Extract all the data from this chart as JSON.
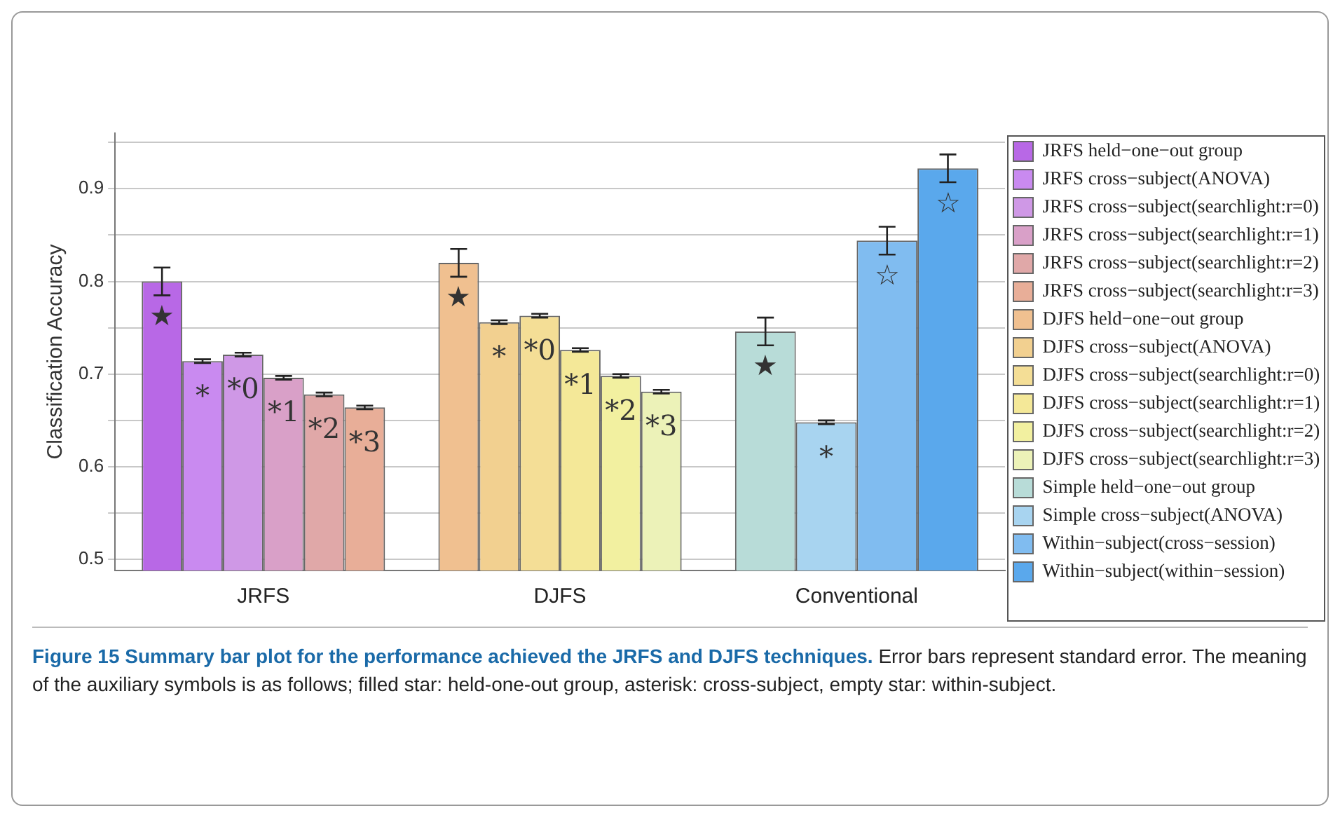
{
  "chart_data": {
    "type": "bar",
    "title": "Figure 15 Summary bar plot for the performance achieved the JRFS and DJFS techniques.",
    "ylabel": "Classification Accuracy",
    "categories": [
      "JRFS",
      "DJFS",
      "Conventional"
    ],
    "ylim": [
      0.488,
      0.96
    ],
    "yticks": [
      0.5,
      {
        "value": 0.55,
        "label": null
      },
      0.6,
      {
        "value": 0.65,
        "label": null
      },
      0.7,
      {
        "value": 0.75,
        "label": null
      },
      0.8,
      {
        "value": 0.85,
        "label": null
      },
      0.9,
      {
        "value": 0.95,
        "label": null
      }
    ],
    "grid": "y",
    "legend": "right",
    "annotations": [
      "★",
      "*",
      "*0",
      "*1",
      "*2",
      "*3",
      "★",
      "*",
      "*0",
      "*1",
      "*2",
      "*3",
      "★",
      "*",
      "☆",
      "☆",
      "Error bars represent standard error. The meaning of the auxiliary symbols is as follows; filled star: held-one-out group, asterisk: cross-subject, empty star: within-subject."
    ],
    "series": [
      {
        "name": "JRFS held−one−out group",
        "color": "#b868e6",
        "values": [
          0.8,
          null,
          null
        ],
        "errors": [
          0.015,
          null,
          null
        ]
      },
      {
        "name": "JRFS cross−subject(ANOVA)",
        "color": "#c98af0",
        "values": [
          0.714,
          null,
          null
        ],
        "errors": [
          0.002,
          null,
          null
        ]
      },
      {
        "name": "JRFS cross−subject(searchlight:r=0)",
        "color": "#cf98e6",
        "values": [
          0.721,
          null,
          null
        ],
        "errors": [
          0.002,
          null,
          null
        ]
      },
      {
        "name": "JRFS cross−subject(searchlight:r=1)",
        "color": "#d9a0c8",
        "values": [
          0.696,
          null,
          null
        ],
        "errors": [
          0.002,
          null,
          null
        ]
      },
      {
        "name": "JRFS cross−subject(searchlight:r=2)",
        "color": "#e0a8a8",
        "values": [
          0.678,
          null,
          null
        ],
        "errors": [
          0.002,
          null,
          null
        ]
      },
      {
        "name": "JRFS cross−subject(searchlight:r=3)",
        "color": "#e8ae98",
        "values": [
          0.664,
          null,
          null
        ],
        "errors": [
          0.002,
          null,
          null
        ]
      },
      {
        "name": "DJFS held−one−out group",
        "color": "#f0c090",
        "values": [
          null,
          0.82,
          null
        ],
        "errors": [
          null,
          0.015,
          null
        ]
      },
      {
        "name": "DJFS cross−subject(ANOVA)",
        "color": "#f2d090",
        "values": [
          null,
          0.756,
          null
        ],
        "errors": [
          null,
          0.002,
          null
        ]
      },
      {
        "name": "DJFS cross−subject(searchlight:r=0)",
        "color": "#f4de96",
        "values": [
          null,
          0.763,
          null
        ],
        "errors": [
          null,
          0.002,
          null
        ]
      },
      {
        "name": "DJFS cross−subject(searchlight:r=1)",
        "color": "#f4e898",
        "values": [
          null,
          0.726,
          null
        ],
        "errors": [
          null,
          0.002,
          null
        ]
      },
      {
        "name": "DJFS cross−subject(searchlight:r=2)",
        "color": "#f2f0a0",
        "values": [
          null,
          0.698,
          null
        ],
        "errors": [
          null,
          0.002,
          null
        ]
      },
      {
        "name": "DJFS cross−subject(searchlight:r=3)",
        "color": "#ecf2b8",
        "values": [
          null,
          0.681,
          null
        ],
        "errors": [
          null,
          0.002,
          null
        ]
      },
      {
        "name": "Simple held−one−out group",
        "color": "#b8dcd8",
        "values": [
          null,
          null,
          0.746
        ],
        "errors": [
          null,
          null,
          0.015
        ]
      },
      {
        "name": "Simple cross−subject(ANOVA)",
        "color": "#a8d4f0",
        "values": [
          null,
          null,
          0.648
        ],
        "errors": [
          null,
          null,
          0.002
        ]
      },
      {
        "name": "Within−subject(cross−session)",
        "color": "#80bcf0",
        "values": [
          null,
          null,
          0.844
        ],
        "errors": [
          null,
          null,
          0.015
        ]
      },
      {
        "name": "Within−subject(within−session)",
        "color": "#5aa8ec",
        "values": [
          null,
          null,
          0.922
        ],
        "errors": [
          null,
          null,
          0.015
        ]
      }
    ]
  }
}
